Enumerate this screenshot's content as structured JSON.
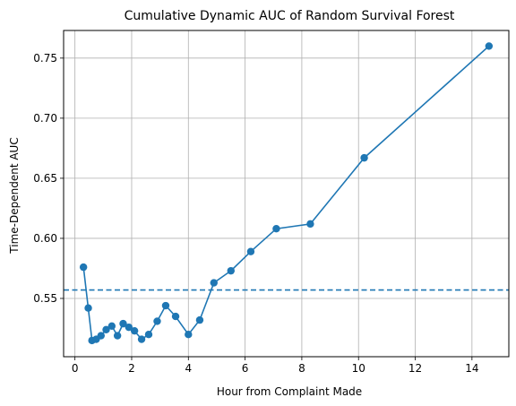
{
  "chart_data": {
    "type": "line",
    "title": "Cumulative Dynamic AUC of Random Survival Forest",
    "xlabel": "Hour from Complaint Made",
    "ylabel": "Time-Dependent AUC",
    "xlim": [
      -0.4,
      15.3
    ],
    "ylim": [
      0.5015,
      0.773
    ],
    "xticks": [
      0,
      2,
      4,
      6,
      8,
      10,
      12,
      14
    ],
    "xtick_labels": [
      "0",
      "2",
      "4",
      "6",
      "8",
      "10",
      "12",
      "14"
    ],
    "yticks": [
      0.55,
      0.6,
      0.65,
      0.7,
      0.75
    ],
    "ytick_labels": [
      "0.55",
      "0.60",
      "0.65",
      "0.70",
      "0.75"
    ],
    "grid": true,
    "series": [
      {
        "color": "#1f77b4",
        "marker": "circle",
        "x": [
          0.3,
          0.47,
          0.6,
          0.75,
          0.92,
          1.1,
          1.3,
          1.5,
          1.7,
          1.9,
          2.1,
          2.35,
          2.6,
          2.9,
          3.2,
          3.55,
          4.0,
          4.4,
          4.9,
          5.5,
          6.2,
          7.1,
          8.3,
          10.2,
          14.6
        ],
        "y": [
          0.576,
          0.542,
          0.515,
          0.516,
          0.519,
          0.524,
          0.527,
          0.519,
          0.529,
          0.526,
          0.523,
          0.516,
          0.52,
          0.531,
          0.544,
          0.535,
          0.52,
          0.532,
          0.563,
          0.573,
          0.589,
          0.608,
          0.612,
          0.667,
          0.76
        ]
      }
    ],
    "reference_line": {
      "orientation": "horizontal",
      "y": 0.557,
      "style": "dashed",
      "color": "#1f77b4"
    }
  }
}
